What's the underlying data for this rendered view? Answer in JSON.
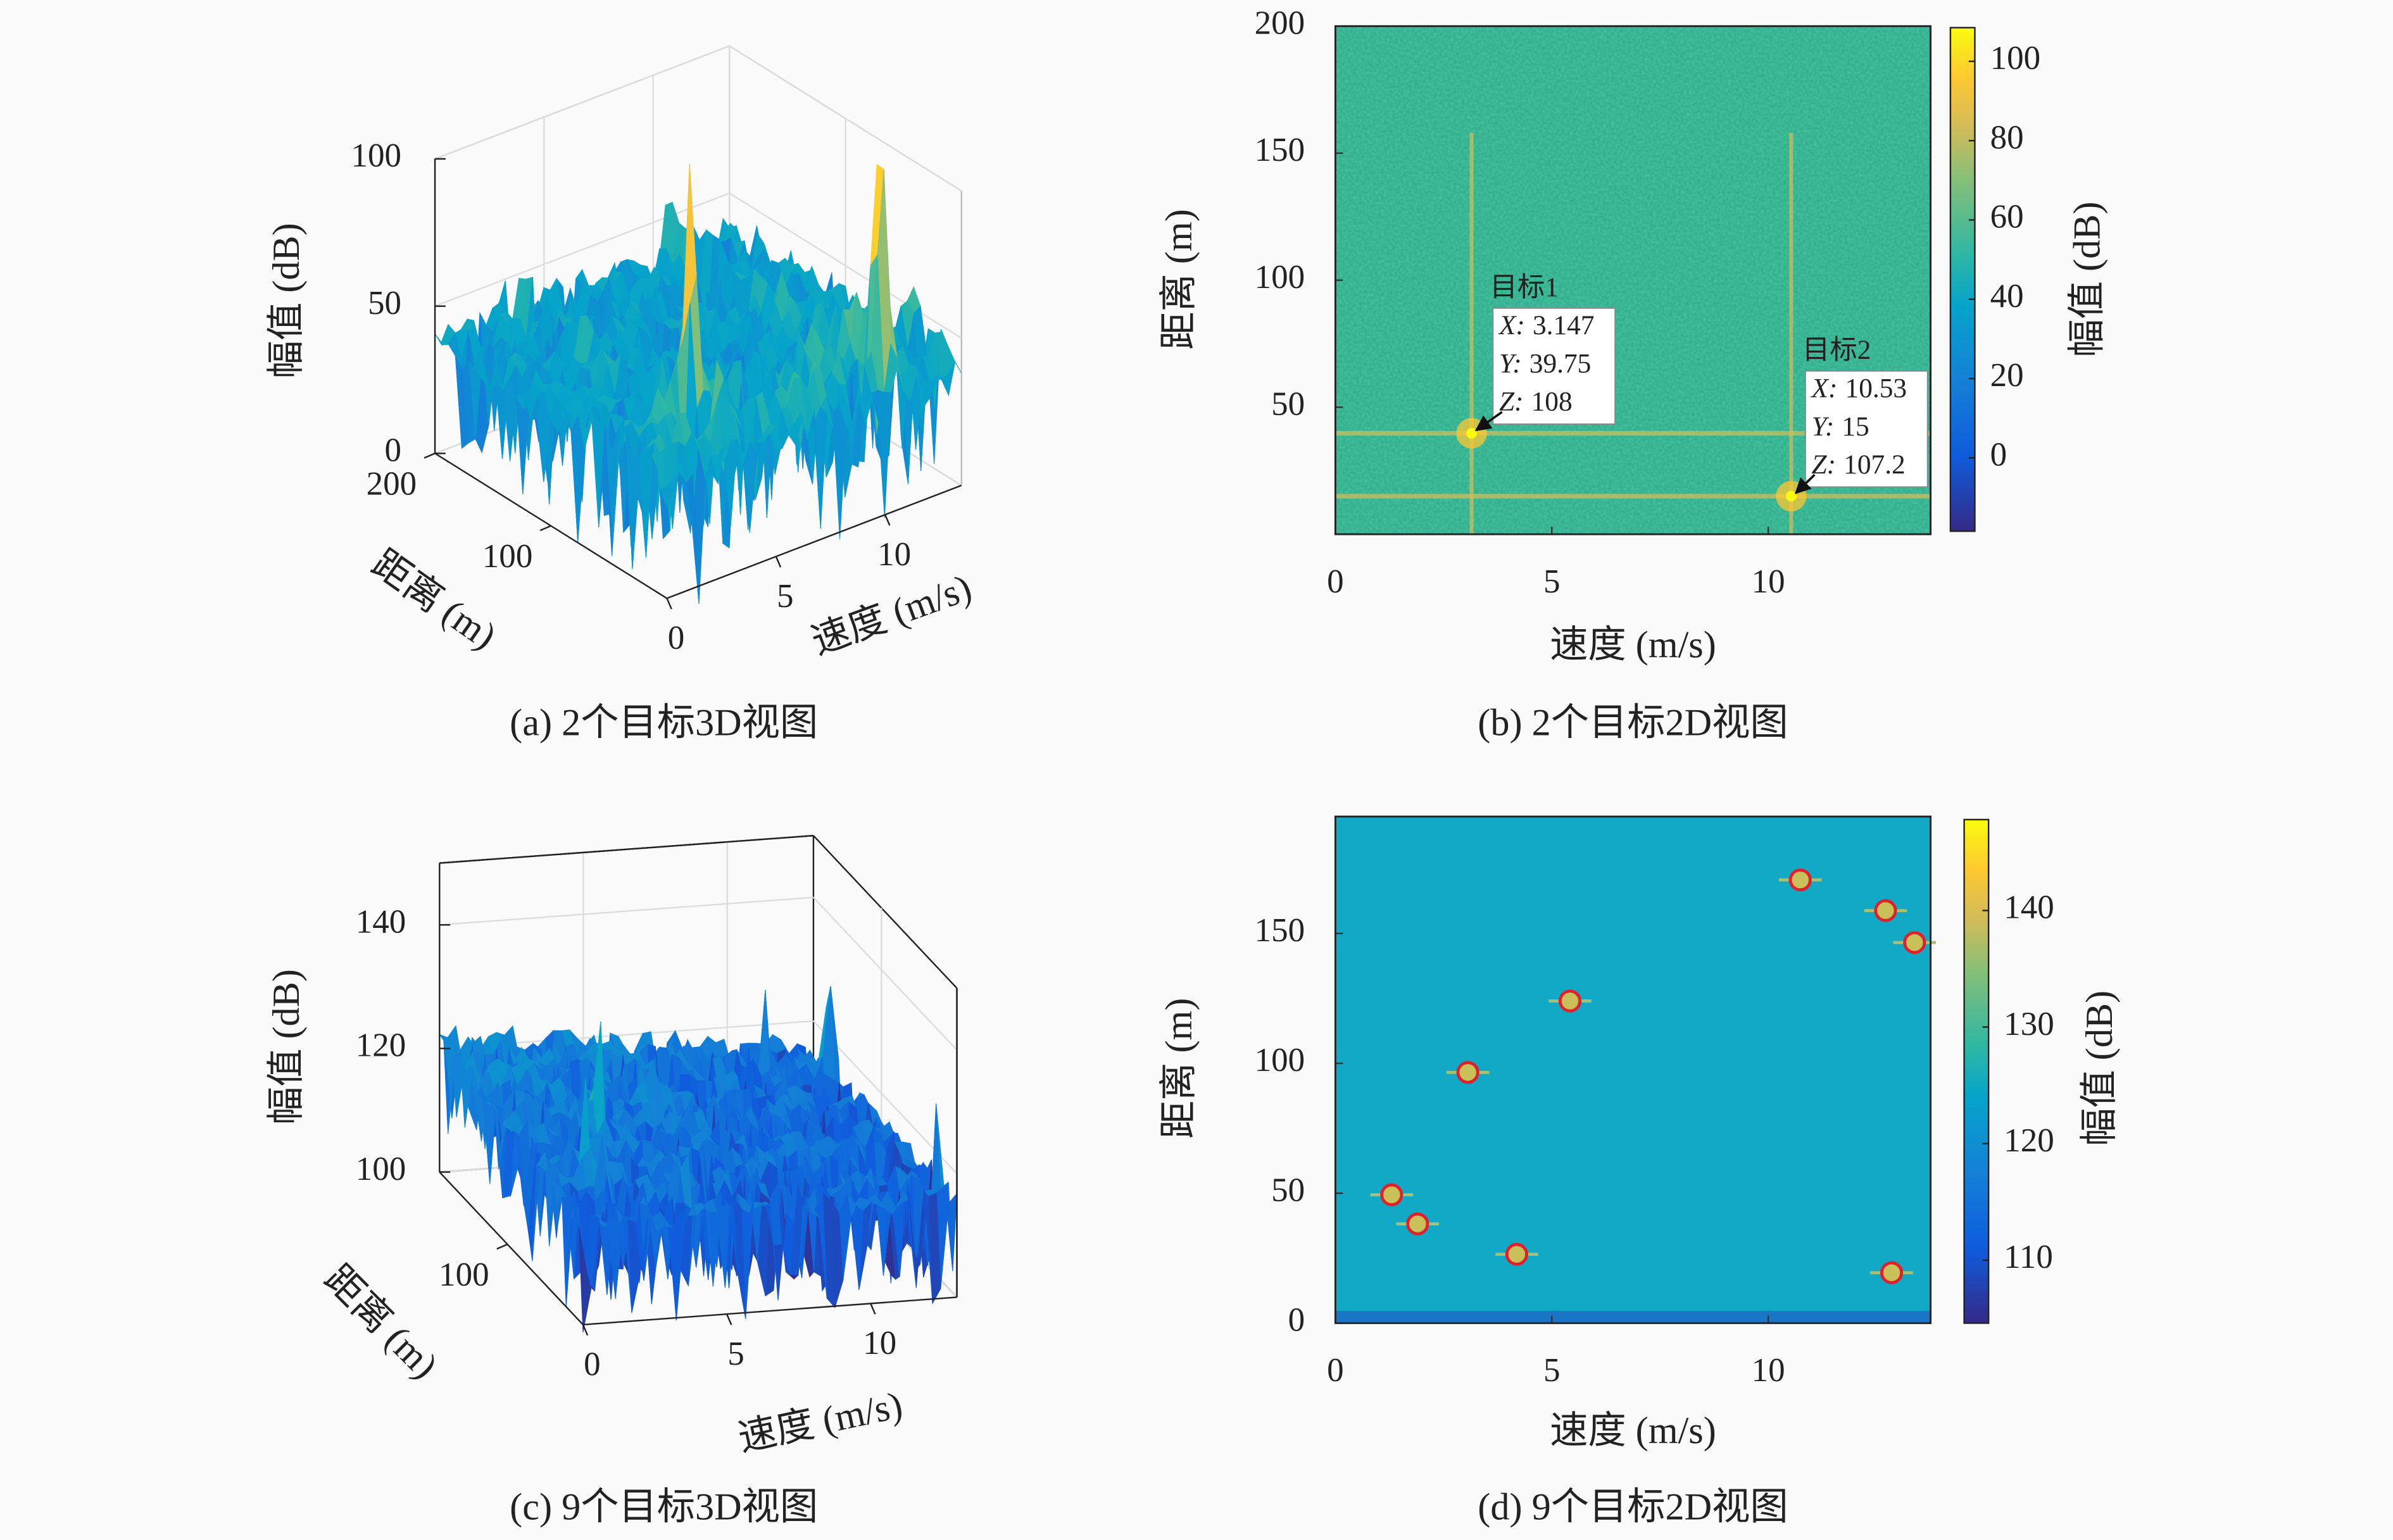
{
  "chart_data": [
    {
      "type": "surface3d",
      "caption": "(a) 2个目标3D视图",
      "xlabel": "速度 (m/s)",
      "ylabel": "距离 (m)",
      "zlabel": "幅值 (dB)",
      "xlim": [
        0,
        13.5
      ],
      "ylim": [
        0,
        200
      ],
      "zlim": [
        0,
        100
      ],
      "xticks": [
        0,
        5,
        10
      ],
      "yticks": [
        100,
        200
      ],
      "zticks": [
        0,
        50,
        100
      ],
      "colormap": "parula"
    },
    {
      "type": "heatmap",
      "caption": "(b) 2个目标2D视图",
      "xlabel": "速度 (m/s)",
      "ylabel": "距离 (m)",
      "colorbar_label": "幅值 (dB)",
      "xlim": [
        0,
        13.75
      ],
      "ylim": [
        0,
        200
      ],
      "xticks": [
        0,
        5,
        10
      ],
      "yticks": [
        50,
        100,
        150,
        200
      ],
      "clim": [
        -18.5,
        108.5
      ],
      "cticks": [
        0,
        20,
        40,
        60,
        80,
        100
      ],
      "colormap": "parula",
      "tip_keys": [
        "X:",
        "Y:",
        "Z:"
      ],
      "datatips": [
        {
          "name": "目标1",
          "x": 3.147,
          "y": 39.75,
          "z": 108
        },
        {
          "name": "目标2",
          "x": 10.53,
          "y": 15,
          "z": 107.2
        }
      ]
    },
    {
      "type": "surface3d",
      "caption": "(c) 9个目标3D视图",
      "xlabel": "速度 (m/s)",
      "ylabel": "距离 (m)",
      "zlabel": "幅值 (dB)",
      "xlim": [
        0,
        13
      ],
      "ylim": [
        0,
        190
      ],
      "zlim": [
        100,
        150
      ],
      "xticks": [
        0,
        5,
        10
      ],
      "yticks": [
        100
      ],
      "zticks": [
        100,
        120,
        140
      ],
      "colormap": "parula"
    },
    {
      "type": "heatmap",
      "caption": "(d) 9个目标2D视图",
      "xlabel": "速度 (m/s)",
      "ylabel": "距离 (m)",
      "colorbar_label": "幅值 (dB)",
      "xlim": [
        0,
        13.75
      ],
      "ylim": [
        0,
        195
      ],
      "xticks": [
        0,
        5,
        10
      ],
      "yticks": [
        0,
        50,
        100,
        150
      ],
      "clim": [
        104.6,
        147.8
      ],
      "cticks": [
        110,
        120,
        130,
        140
      ],
      "colormap": "parula",
      "marker_color": "#e0202c",
      "targets": {
        "x": [
          1.3,
          1.9,
          4.19,
          3.06,
          5.42,
          10.74,
          12.71,
          13.38,
          12.85
        ],
        "y": [
          49.4,
          38.2,
          26.5,
          96.5,
          124,
          170.6,
          158.8,
          146.5,
          19.4
        ]
      }
    }
  ]
}
